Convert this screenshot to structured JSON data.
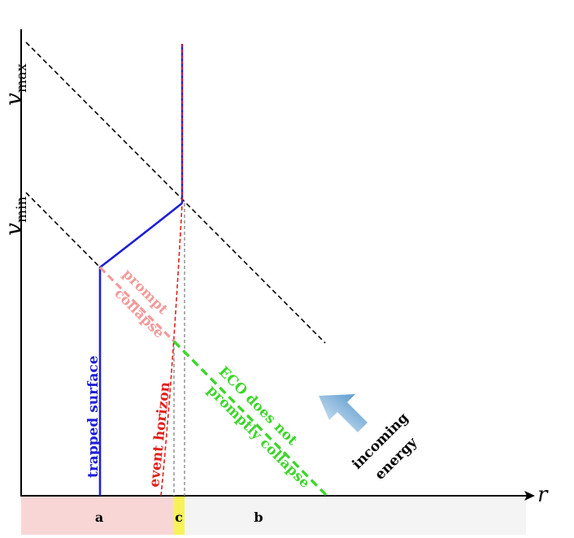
{
  "axes": {
    "x_label": "r",
    "y_tick_top": "v",
    "y_tick_top_sub": "max",
    "y_tick_mid": "v",
    "y_tick_mid_sub": "min"
  },
  "curves": {
    "trapped_surface": "trapped surface",
    "event_horizon": "event horizon",
    "prompt_collapse_line1": "prompt",
    "prompt_collapse_line2": "collapse",
    "eco_line1": "ECO does not",
    "eco_line2": "promptly collapse"
  },
  "arrow": {
    "label_line1": "incoming",
    "label_line2": "energy"
  },
  "regions": {
    "a": "a",
    "c": "c",
    "b": "b"
  },
  "colors": {
    "trapped_surface": "#1f1fd6",
    "event_horizon": "#e0201c",
    "prompt_collapse": "#f29a9a",
    "eco": "#3dd62a",
    "region_a": "#f9d6d6",
    "region_c": "#f8f25a",
    "region_b": "#f3f4f3",
    "arrow": "#5b9fd0"
  }
}
